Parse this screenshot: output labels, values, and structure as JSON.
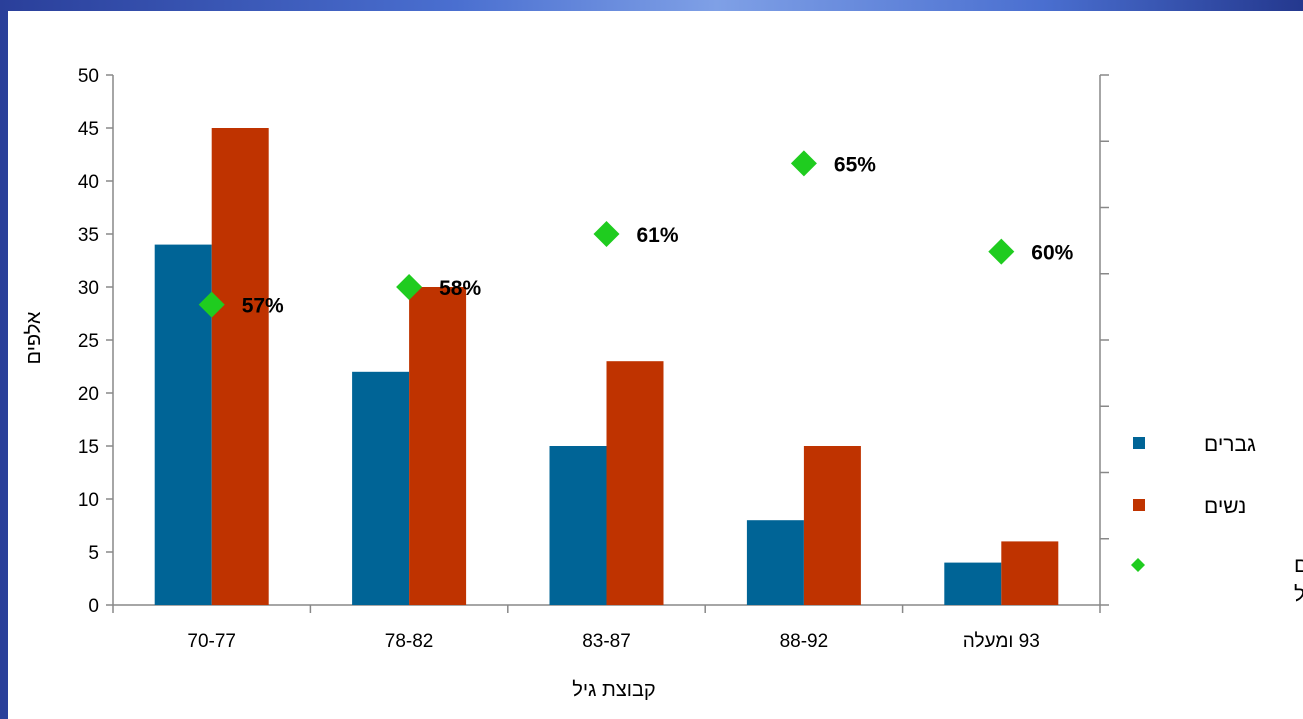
{
  "chart_data": {
    "type": "bar",
    "categories": [
      "70-77",
      "78-82",
      "83-87",
      "88-92",
      "93  ומעלה"
    ],
    "series": [
      {
        "name": "גברים",
        "values": [
          34,
          22,
          15,
          8,
          4
        ],
        "color": "#006496"
      },
      {
        "name": "נשים",
        "values": [
          45,
          30,
          23,
          15,
          6
        ],
        "color": "#bf3300"
      }
    ],
    "overlay": {
      "type": "scatter",
      "name_lines": [
        "אחוז  נשים",
        "בקבוצת הגיל"
      ],
      "values": [
        57,
        58,
        61,
        65,
        60
      ],
      "labels": [
        "57%",
        "58%",
        "61%",
        "65%",
        "60%"
      ],
      "marker": "diamond",
      "color": "#1fcc1f"
    },
    "title": "",
    "xlabel": "קבוצת  גיל",
    "ylabel": "אלפים",
    "ylim": [
      0,
      50
    ],
    "yticks": [
      "0",
      "5",
      "10",
      "15",
      "20",
      "25",
      "30",
      "35",
      "40",
      "45",
      "50"
    ],
    "y2_hidden": true,
    "grid": false,
    "legend_position": "right"
  }
}
